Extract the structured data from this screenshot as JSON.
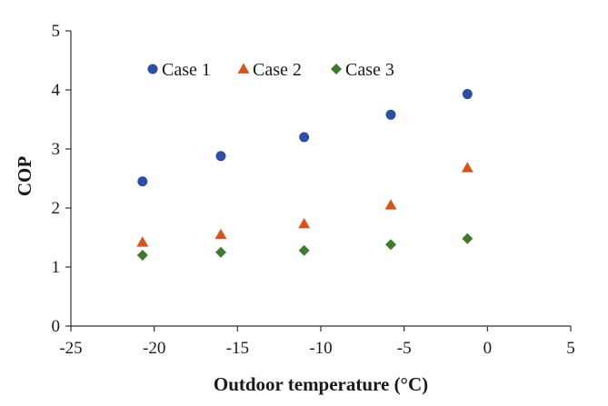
{
  "chart_data": {
    "type": "scatter",
    "title": "",
    "xlabel": "Outdoor temperature (°C)",
    "ylabel": "COP",
    "xlim": [
      -25,
      5
    ],
    "ylim": [
      0,
      5
    ],
    "x_ticks": [
      -25,
      -20,
      -15,
      -10,
      -5,
      0,
      5
    ],
    "y_ticks": [
      0,
      1,
      2,
      3,
      4,
      5
    ],
    "grid": false,
    "legend_position": "top-left",
    "series": [
      {
        "name": "Case 1",
        "marker": "circle",
        "color": "#2e4ea0",
        "points": [
          {
            "x": -20.7,
            "y": 2.45
          },
          {
            "x": -16.0,
            "y": 2.88
          },
          {
            "x": -11.0,
            "y": 3.2
          },
          {
            "x": -5.8,
            "y": 3.58
          },
          {
            "x": -1.2,
            "y": 3.93
          }
        ]
      },
      {
        "name": "Case 2",
        "marker": "triangle",
        "color": "#d3541e",
        "points": [
          {
            "x": -20.7,
            "y": 1.42
          },
          {
            "x": -16.0,
            "y": 1.55
          },
          {
            "x": -11.0,
            "y": 1.73
          },
          {
            "x": -5.8,
            "y": 2.05
          },
          {
            "x": -1.2,
            "y": 2.68
          }
        ]
      },
      {
        "name": "Case 3",
        "marker": "diamond",
        "color": "#3d7a2e",
        "points": [
          {
            "x": -20.7,
            "y": 1.2
          },
          {
            "x": -16.0,
            "y": 1.25
          },
          {
            "x": -11.0,
            "y": 1.28
          },
          {
            "x": -5.8,
            "y": 1.38
          },
          {
            "x": -1.2,
            "y": 1.48
          }
        ]
      }
    ]
  }
}
